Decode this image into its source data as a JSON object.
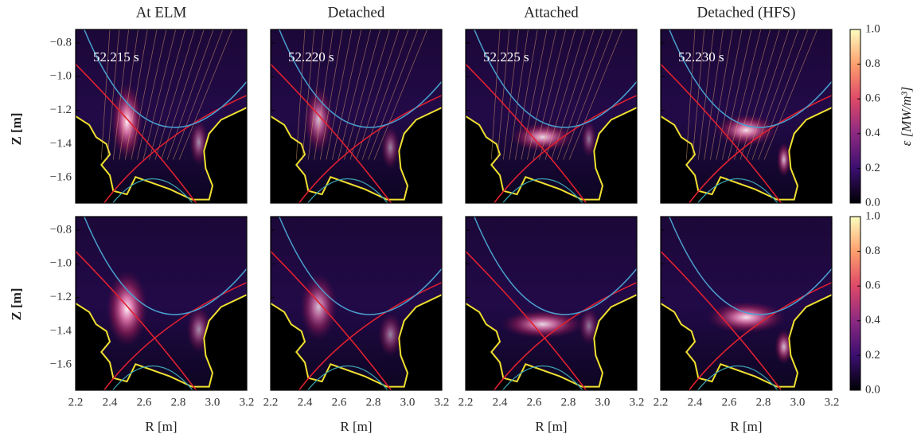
{
  "chart_data": {
    "type": "heatmap",
    "columns": [
      "At ELM",
      "Detached",
      "Attached",
      "Detached (HFS)"
    ],
    "times": [
      "52.215 s",
      "52.220 s",
      "52.225 s",
      "52.230 s"
    ],
    "xlabel": "R [m]",
    "ylabel": "Z [m]",
    "xlim": [
      2.2,
      3.2
    ],
    "xticks": [
      2.2,
      2.4,
      2.6,
      2.8,
      {
        "value": 3,
        "label": "3.0"
      },
      3.2
    ],
    "ylim": [
      -1.75,
      -0.72
    ],
    "yticks": [
      {
        "value": -0.8,
        "label": "−0.8"
      },
      {
        "value": -1,
        "label": "−1.0"
      },
      {
        "value": -1.2,
        "label": "−1.2"
      },
      {
        "value": -1.4,
        "label": "−1.4"
      },
      {
        "value": -1.6,
        "label": "−1.6"
      }
    ],
    "colorbar": {
      "label": "ε [MW/m³]",
      "lim": [
        0,
        1
      ],
      "ticks": [
        {
          "value": 0,
          "label": "0.0"
        },
        0.2,
        0.4,
        0.6,
        0.8,
        {
          "value": 1,
          "label": "1.0"
        }
      ],
      "colors": [
        "#000004",
        "#3b0f70",
        "#8c2981",
        "#de4968",
        "#fe9f6d",
        "#fcfdbf"
      ]
    }
  }
}
